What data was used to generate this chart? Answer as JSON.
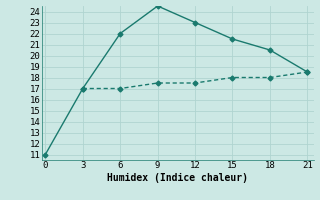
{
  "line1_x": [
    0,
    3,
    6,
    9,
    12,
    15,
    18,
    21
  ],
  "line1_y": [
    11,
    17,
    22,
    24.5,
    23,
    21.5,
    20.5,
    18.5
  ],
  "line2_x": [
    3,
    6,
    9,
    12,
    15,
    18,
    21
  ],
  "line2_y": [
    17,
    17,
    17.5,
    17.5,
    18,
    18,
    18.5
  ],
  "line_color": "#1a7a6e",
  "bg_color": "#cce8e4",
  "grid_color": "#b0d4d0",
  "xlabel": "Humidex (Indice chaleur)",
  "xlim": [
    0,
    21
  ],
  "ylim": [
    11,
    24
  ],
  "xticks": [
    0,
    3,
    6,
    9,
    12,
    15,
    18,
    21
  ],
  "yticks": [
    11,
    12,
    13,
    14,
    15,
    16,
    17,
    18,
    19,
    20,
    21,
    22,
    23,
    24
  ],
  "xlabel_fontsize": 7,
  "tick_fontsize": 6.5,
  "marker": "D",
  "markersize": 2.5,
  "linewidth": 1.0
}
